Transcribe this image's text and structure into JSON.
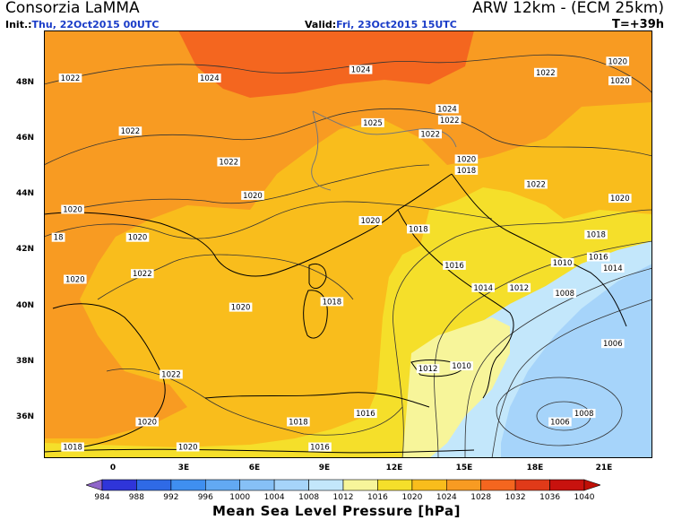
{
  "header": {
    "title_left": "Consorzia LaMMA",
    "title_right": "ARW 12km - (ECM 25km)",
    "init_label": "Init.:",
    "init_value": "Thu, 22Oct2015 00UTC",
    "valid_label": "Valid:",
    "valid_value": "Fri, 23Oct2015 15UTC",
    "forecast_hour": "T=+39h"
  },
  "map": {
    "lat_labels": [
      "48N",
      "46N",
      "44N",
      "42N",
      "40N",
      "38N",
      "36N"
    ],
    "lon_labels": [
      "0",
      "3E",
      "6E",
      "9E",
      "12E",
      "15E",
      "18E",
      "21E"
    ],
    "isobar_labels": [
      {
        "text": "1022",
        "lon": -0.9,
        "lat": 48.2
      },
      {
        "text": "1024",
        "lon": 4.9,
        "lat": 48.2
      },
      {
        "text": "1024",
        "lon": 11.2,
        "lat": 48.5
      },
      {
        "text": "1022",
        "lon": 18.9,
        "lat": 48.4
      },
      {
        "text": "1020",
        "lon": 21.9,
        "lat": 48.8
      },
      {
        "text": "1020",
        "lon": 22.0,
        "lat": 48.1
      },
      {
        "text": "1022",
        "lon": 1.6,
        "lat": 46.3
      },
      {
        "text": "1022",
        "lon": 5.7,
        "lat": 45.2
      },
      {
        "text": "1025",
        "lon": 11.7,
        "lat": 46.6
      },
      {
        "text": "1024",
        "lon": 14.8,
        "lat": 47.1
      },
      {
        "text": "1022",
        "lon": 14.9,
        "lat": 46.7
      },
      {
        "text": "1022",
        "lon": 14.1,
        "lat": 46.2
      },
      {
        "text": "1020",
        "lon": 15.6,
        "lat": 45.3
      },
      {
        "text": "1018",
        "lon": 15.6,
        "lat": 44.9
      },
      {
        "text": "1022",
        "lon": 18.5,
        "lat": 44.4
      },
      {
        "text": "1020",
        "lon": 22.0,
        "lat": 43.9
      },
      {
        "text": "1020",
        "lon": 6.7,
        "lat": 44.0
      },
      {
        "text": "1020",
        "lon": -0.8,
        "lat": 43.5
      },
      {
        "text": "1020",
        "lon": 11.6,
        "lat": 43.1
      },
      {
        "text": "1018",
        "lon": 13.6,
        "lat": 42.8
      },
      {
        "text": "1018",
        "lon": 21.0,
        "lat": 42.6
      },
      {
        "text": "1020",
        "lon": 1.9,
        "lat": 42.5
      },
      {
        "text": "18",
        "lon": -1.4,
        "lat": 42.5
      },
      {
        "text": "1022",
        "lon": 2.1,
        "lat": 41.2
      },
      {
        "text": "1020",
        "lon": -0.7,
        "lat": 41.0
      },
      {
        "text": "1016",
        "lon": 15.1,
        "lat": 41.5
      },
      {
        "text": "1010",
        "lon": 19.6,
        "lat": 41.6
      },
      {
        "text": "1016",
        "lon": 21.1,
        "lat": 41.8
      },
      {
        "text": "1014",
        "lon": 21.7,
        "lat": 41.4
      },
      {
        "text": "1014",
        "lon": 16.3,
        "lat": 40.7
      },
      {
        "text": "1012",
        "lon": 17.8,
        "lat": 40.7
      },
      {
        "text": "1008",
        "lon": 19.7,
        "lat": 40.5
      },
      {
        "text": "1018",
        "lon": 10.0,
        "lat": 40.2
      },
      {
        "text": "1020",
        "lon": 6.2,
        "lat": 40.0
      },
      {
        "text": "1006",
        "lon": 21.7,
        "lat": 38.7
      },
      {
        "text": "1012",
        "lon": 14.0,
        "lat": 37.8
      },
      {
        "text": "1010",
        "lon": 15.4,
        "lat": 37.9
      },
      {
        "text": "1022",
        "lon": 3.3,
        "lat": 37.6
      },
      {
        "text": "1008",
        "lon": 20.5,
        "lat": 36.2
      },
      {
        "text": "1006",
        "lon": 19.5,
        "lat": 35.9
      },
      {
        "text": "1020",
        "lon": 2.3,
        "lat": 35.9
      },
      {
        "text": "1018",
        "lon": 8.6,
        "lat": 35.9
      },
      {
        "text": "1016",
        "lon": 11.4,
        "lat": 36.2
      },
      {
        "text": "1018",
        "lon": -0.8,
        "lat": 35.0
      },
      {
        "text": "1020",
        "lon": 4.0,
        "lat": 35.0
      },
      {
        "text": "1016",
        "lon": 9.5,
        "lat": 35.0
      }
    ]
  },
  "colorbar": {
    "levels": [
      "984",
      "988",
      "992",
      "996",
      "1000",
      "1004",
      "1008",
      "1012",
      "1016",
      "1020",
      "1024",
      "1028",
      "1032",
      "1036",
      "1040"
    ],
    "colors": [
      "#2f35d9",
      "#2f6ae6",
      "#3f8ff0",
      "#62a9f3",
      "#86c0f6",
      "#a6d4fa",
      "#c3e7fb",
      "#f7f59a",
      "#f5df2a",
      "#f9bd1c",
      "#f89b22",
      "#f4661f",
      "#e03a19",
      "#c8120e"
    ],
    "under_color": "#8f65c9",
    "over_color": "#c01007",
    "title": "Mean Sea Level Pressure [hPa]"
  }
}
